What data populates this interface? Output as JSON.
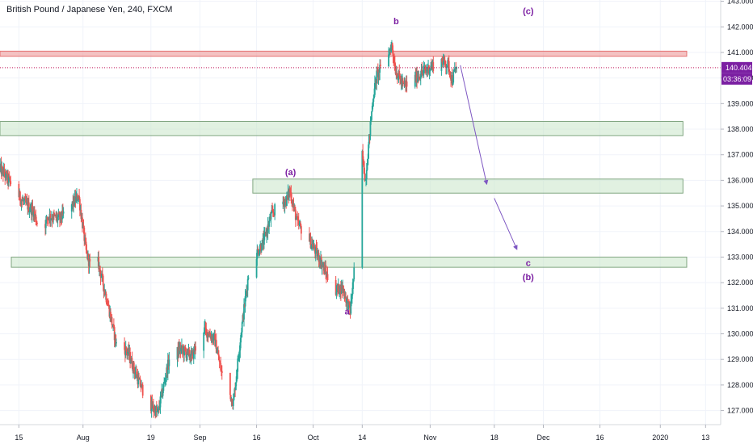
{
  "chart_data": {
    "type": "candlestick",
    "title": "British Pound / Japanese Yen, 240, FXCM",
    "ylim": [
      126.45,
      143.05
    ],
    "y_ticks": [
      127.0,
      128.0,
      129.0,
      130.0,
      131.0,
      132.0,
      133.0,
      134.0,
      135.0,
      136.0,
      137.0,
      138.0,
      139.0,
      140.0,
      141.0,
      142.0,
      143.0
    ],
    "x_ticks": [
      "15",
      "Aug",
      "19",
      "Sep",
      "16",
      "Oct",
      "14",
      "Nov",
      "18",
      "Dec",
      "16",
      "2020",
      "13"
    ],
    "x_range": [
      "2019-07-10",
      "2020-01-17"
    ],
    "last_price": "140.404",
    "countdown": "03:36:09",
    "colors": {
      "up": "#26a69a",
      "down": "#ef5350",
      "zone": "#c8e6c9",
      "resistance": "#ef9a9a",
      "wave_label": "#7b1fa2",
      "arrow": "#7e57c2",
      "price_tag": "#7b1fa2"
    },
    "path_points": [
      [
        "2019-07-10",
        136.5
      ],
      [
        "2019-07-13",
        135.9
      ],
      [
        "2019-07-16",
        135.2
      ],
      [
        "2019-07-19",
        134.8
      ],
      [
        "2019-07-21",
        133.9
      ],
      [
        "2019-07-23",
        134.6
      ],
      [
        "2019-07-26",
        134.5
      ],
      [
        "2019-07-28",
        134.8
      ],
      [
        "2019-07-31",
        135.4
      ],
      [
        "2019-08-02",
        133.2
      ],
      [
        "2019-08-04",
        132.2
      ],
      [
        "2019-08-05",
        132.9
      ],
      [
        "2019-08-08",
        131.0
      ],
      [
        "2019-08-10",
        129.6
      ],
      [
        "2019-08-13",
        129.3
      ],
      [
        "2019-08-16",
        128.1
      ],
      [
        "2019-08-19",
        127.2
      ],
      [
        "2019-08-21",
        126.9
      ],
      [
        "2019-08-24",
        129.0
      ],
      [
        "2019-08-27",
        129.4
      ],
      [
        "2019-08-30",
        129.1
      ],
      [
        "2019-09-02",
        130.2
      ],
      [
        "2019-09-05",
        129.8
      ],
      [
        "2019-09-07",
        128.4
      ],
      [
        "2019-09-10",
        127.3
      ],
      [
        "2019-09-12",
        130.0
      ],
      [
        "2019-09-14",
        132.3
      ],
      [
        "2019-09-16",
        133.1
      ],
      [
        "2019-09-18",
        133.6
      ],
      [
        "2019-09-20",
        134.6
      ],
      [
        "2019-09-22",
        135.1
      ],
      [
        "2019-09-24",
        135.2
      ],
      [
        "2019-09-25",
        135.6
      ],
      [
        "2019-09-27",
        134.3
      ],
      [
        "2019-09-30",
        133.7
      ],
      [
        "2019-10-03",
        132.9
      ],
      [
        "2019-10-05",
        132.2
      ],
      [
        "2019-10-07",
        131.7
      ],
      [
        "2019-10-09",
        131.8
      ],
      [
        "2019-10-10",
        131.3
      ],
      [
        "2019-10-11",
        130.9
      ],
      [
        "2019-10-12",
        132.4
      ],
      [
        "2019-10-13",
        134.5
      ],
      [
        "2019-10-14",
        137.2
      ],
      [
        "2019-10-15",
        136.0
      ],
      [
        "2019-10-17",
        139.2
      ],
      [
        "2019-10-18",
        140.1
      ],
      [
        "2019-10-20",
        140.6
      ],
      [
        "2019-10-22",
        141.3
      ],
      [
        "2019-10-23",
        140.3
      ],
      [
        "2019-10-25",
        139.7
      ],
      [
        "2019-10-27",
        139.8
      ],
      [
        "2019-10-29",
        140.1
      ],
      [
        "2019-10-31",
        140.3
      ],
      [
        "2019-11-02",
        140.5
      ],
      [
        "2019-11-03",
        140.2
      ],
      [
        "2019-11-04",
        140.7
      ],
      [
        "2019-11-06",
        140.5
      ],
      [
        "2019-11-07",
        139.9
      ],
      [
        "2019-11-08",
        140.4
      ]
    ],
    "zones": [
      {
        "name": "resistance-zone",
        "from": "2019-07-10",
        "to": "2020-01-08",
        "y1": 140.85,
        "y2": 141.05,
        "color": "resistance"
      },
      {
        "name": "zone-138",
        "from": "2019-07-10",
        "to": "2020-01-07",
        "y1": 137.75,
        "y2": 138.3,
        "color": "zone"
      },
      {
        "name": "zone-136",
        "from": "2019-09-15",
        "to": "2020-01-07",
        "y1": 135.5,
        "y2": 136.05,
        "color": "zone"
      },
      {
        "name": "zone-133",
        "from": "2019-07-13",
        "to": "2020-01-08",
        "y1": 132.6,
        "y2": 133.0,
        "color": "zone"
      }
    ],
    "wave_labels": [
      {
        "text": "(a)",
        "date": "2019-09-25",
        "price": 136.2
      },
      {
        "text": "a",
        "date": "2019-10-10",
        "price": 130.75
      },
      {
        "text": "b",
        "date": "2019-10-23",
        "price": 142.1
      },
      {
        "text": "(c)",
        "date": "2019-11-27",
        "price": 142.5
      },
      {
        "text": "c",
        "date": "2019-11-27",
        "price": 132.65
      },
      {
        "text": "(b)",
        "date": "2019-11-27",
        "price": 132.1
      }
    ],
    "arrows": [
      {
        "from": [
          "2019-11-09",
          140.5
        ],
        "to": [
          "2019-11-16",
          135.85
        ]
      },
      {
        "from": [
          "2019-11-18",
          135.3
        ],
        "to": [
          "2019-11-24",
          133.3
        ]
      }
    ]
  }
}
